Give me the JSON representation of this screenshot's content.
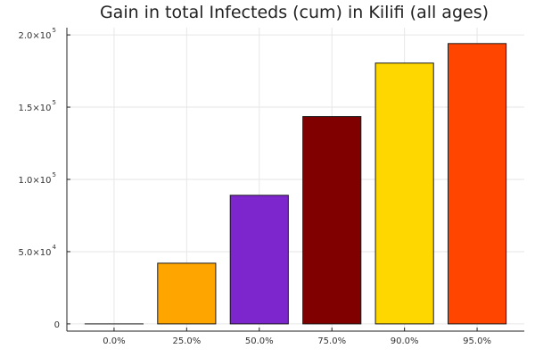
{
  "chart_data": {
    "type": "bar",
    "title": "Gain in total Infecteds (cum) in Kilifi (all ages)",
    "xlabel": "",
    "ylabel": "",
    "categories": [
      "0.0%",
      "25.0%",
      "50.0%",
      "75.0%",
      "90.0%",
      "95.0%"
    ],
    "values": [
      0,
      42000,
      89000,
      143500,
      180500,
      194000
    ],
    "colors": [
      "#1f77b4",
      "#ffa500",
      "#7e26ce",
      "#800000",
      "#ffd700",
      "#ff4500"
    ],
    "ylim": [
      -5000,
      205000
    ],
    "yticks": [
      {
        "value": 0,
        "base": "0",
        "exp": ""
      },
      {
        "value": 50000,
        "base": "5.0×10",
        "exp": "4"
      },
      {
        "value": 100000,
        "base": "1.0×10",
        "exp": "5"
      },
      {
        "value": 150000,
        "base": "1.5×10",
        "exp": "5"
      },
      {
        "value": 200000,
        "base": "2.0×10",
        "exp": "5"
      }
    ],
    "grid": true,
    "legend": "none"
  }
}
